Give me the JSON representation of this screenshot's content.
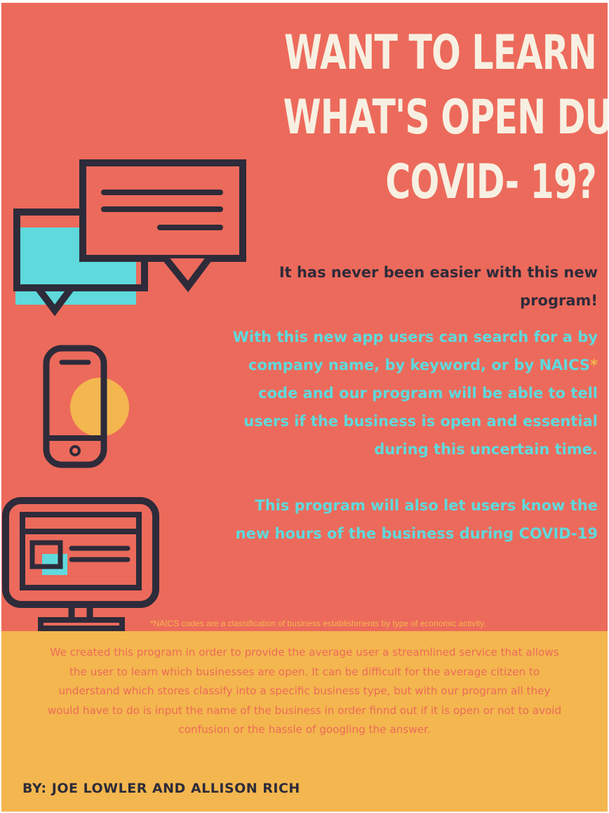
{
  "headline": {
    "line1": "WANT TO LEARN",
    "line2": "WHAT'S OPEN DURING",
    "line3": "COVID- 19?"
  },
  "intro": {
    "line1": "It has never been easier with this new",
    "line2": "program!"
  },
  "description": {
    "line1": "With this new app users can search for a by",
    "line2a": "company name, by keyword, or by NAICS",
    "line2b": "*",
    "line3": "code and our program will be able to tell",
    "line4": "users if the business is open and essential",
    "line5": "during this uncertain time."
  },
  "hours": {
    "line1": "This program will also let users know the",
    "line2": "new hours of the business during COVID-19"
  },
  "footnote": "*NAICS codes are a classification of business establishments by type of economic activity.",
  "body": {
    "line1": "We created this program in order to provide the average user a streamlined service that allows",
    "line2": "the user to learn which businesses are open. It can be difficult for the average citizen to",
    "line3": "understand which stores classify into a specific business type, but with our program all they",
    "line4": "would have to do is input the name of the business in order finnd out if it is open or not to avoid",
    "line5": "confusion or the hassle of googling the answer."
  },
  "authors": "BY: JOE LOWLER AND ALLISON RICH",
  "colors": {
    "background": "#ec6a5b",
    "band": "#f4b64e",
    "headline": "#f7f0e2",
    "dark": "#2e2b3a",
    "teal": "#5fd9dc",
    "yellow": "#f4b64e"
  },
  "icons": [
    "chat-bubbles-icon",
    "smartphone-icon",
    "desktop-monitor-icon"
  ]
}
